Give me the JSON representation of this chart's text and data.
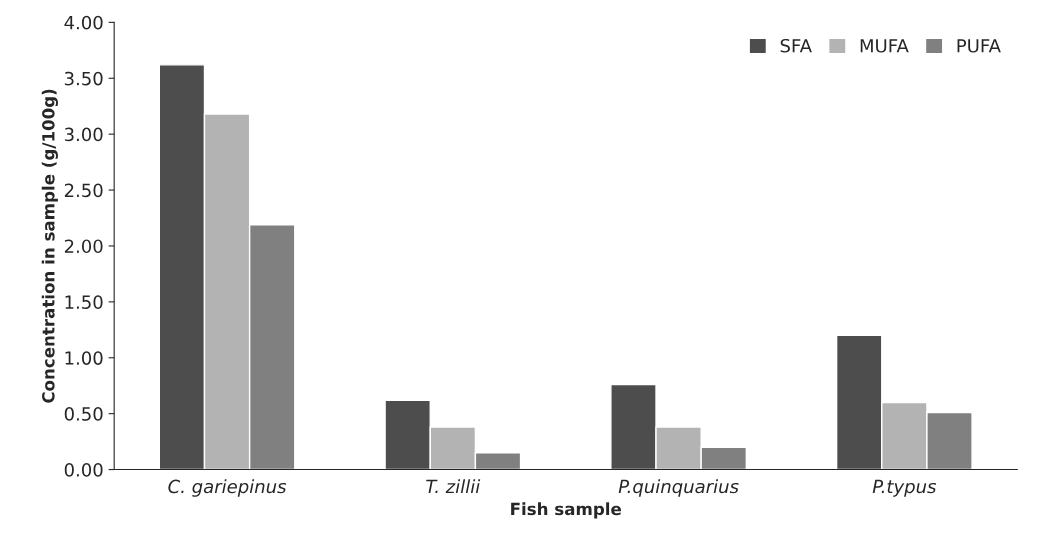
{
  "chart_data": {
    "type": "bar",
    "xlabel": "Fish sample",
    "ylabel": "Concentration in sample (g/100g)",
    "categories": [
      "C. gariepinus",
      "T. zillii",
      "P.quinquarius",
      "P.typus"
    ],
    "series": [
      {
        "name": "SFA",
        "color": "#4d4d4d",
        "values": [
          3.62,
          0.62,
          0.76,
          1.2
        ]
      },
      {
        "name": "MUFA",
        "color": "#b3b3b3",
        "values": [
          3.18,
          0.38,
          0.38,
          0.6
        ]
      },
      {
        "name": "PUFA",
        "color": "#808080",
        "values": [
          2.19,
          0.15,
          0.2,
          0.51
        ]
      }
    ],
    "ylim": [
      0,
      4
    ],
    "yticks": [
      {
        "value": 0,
        "label": "0.00"
      },
      {
        "value": 0.5,
        "label": "0.50"
      },
      {
        "value": 1,
        "label": "1.00"
      },
      {
        "value": 1.5,
        "label": "1.50"
      },
      {
        "value": 2,
        "label": "2.00"
      },
      {
        "value": 2.5,
        "label": "2.50"
      },
      {
        "value": 3,
        "label": "3.00"
      },
      {
        "value": 3.5,
        "label": "3.50"
      },
      {
        "value": 4,
        "label": "4.00"
      }
    ],
    "legend": "top right",
    "grid": false
  }
}
